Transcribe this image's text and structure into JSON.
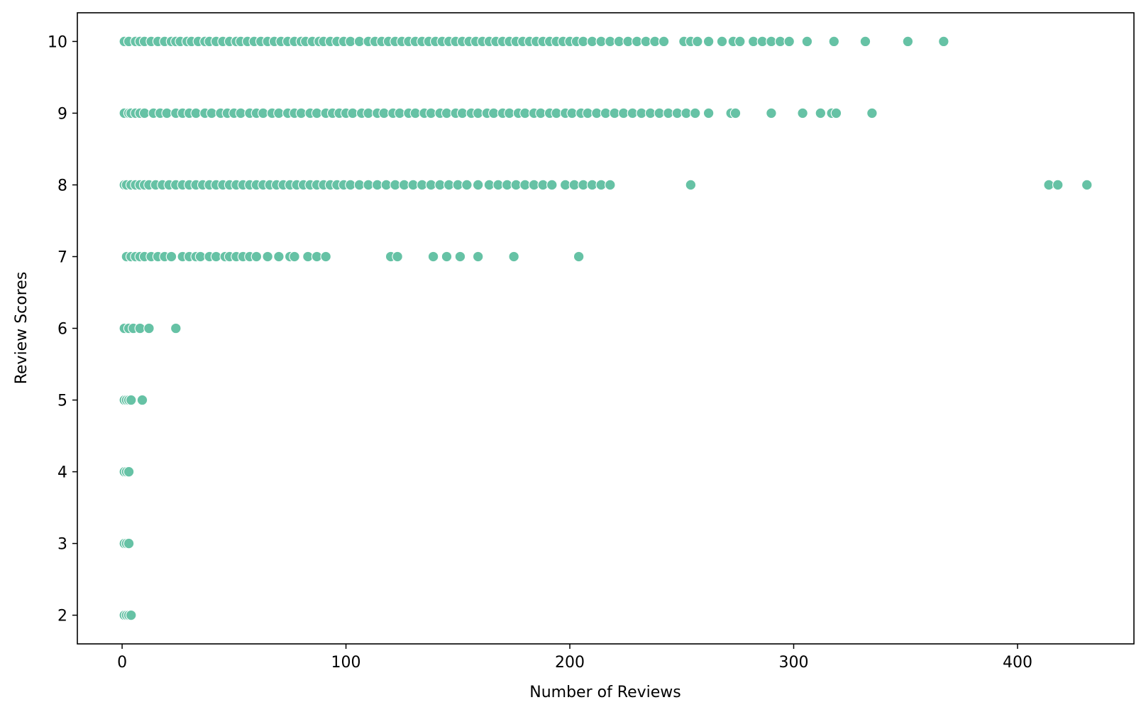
{
  "chart_data": {
    "type": "scatter",
    "title": "",
    "xlabel": "Number of Reviews",
    "ylabel": "Review Scores",
    "xlim": [
      -20,
      452
    ],
    "ylim": [
      1.6,
      10.4
    ],
    "xticks": [
      0,
      100,
      200,
      300,
      400
    ],
    "yticks": [
      2,
      3,
      4,
      5,
      6,
      7,
      8,
      9,
      10
    ],
    "grid": false,
    "legend": "none",
    "point_color": "#66c2a5",
    "point_edge_color": "#ffffff",
    "series": [
      {
        "x": [
          1,
          3,
          6,
          8,
          10,
          13,
          16,
          19,
          22,
          24,
          26,
          29,
          31,
          34,
          37,
          39,
          42,
          45,
          48,
          51,
          53,
          56,
          59,
          62,
          65,
          68,
          71,
          74,
          77,
          80,
          82,
          85,
          88,
          90,
          93,
          96,
          99,
          102,
          106,
          110,
          113,
          116,
          119,
          122,
          125,
          128,
          131,
          134,
          137,
          140,
          143,
          146,
          149,
          152,
          155,
          158,
          161,
          164,
          167,
          170,
          173,
          176,
          179,
          182,
          185,
          188,
          191,
          194,
          197,
          200,
          203,
          206,
          210,
          214,
          218,
          222,
          226,
          230,
          234,
          238,
          242,
          251,
          254,
          257,
          262,
          268,
          273,
          276,
          282,
          286,
          290,
          294,
          298,
          306,
          318,
          332,
          351,
          367
        ],
        "y": [
          10,
          10,
          10,
          10,
          10,
          10,
          10,
          10,
          10,
          10,
          10,
          10,
          10,
          10,
          10,
          10,
          10,
          10,
          10,
          10,
          10,
          10,
          10,
          10,
          10,
          10,
          10,
          10,
          10,
          10,
          10,
          10,
          10,
          10,
          10,
          10,
          10,
          10,
          10,
          10,
          10,
          10,
          10,
          10,
          10,
          10,
          10,
          10,
          10,
          10,
          10,
          10,
          10,
          10,
          10,
          10,
          10,
          10,
          10,
          10,
          10,
          10,
          10,
          10,
          10,
          10,
          10,
          10,
          10,
          10,
          10,
          10,
          10,
          10,
          10,
          10,
          10,
          10,
          10,
          10,
          10,
          10,
          10,
          10,
          10,
          10,
          10,
          10,
          10,
          10,
          10,
          10,
          10,
          10,
          10,
          10,
          10,
          10
        ]
      },
      {
        "x": [
          1,
          3,
          4,
          6,
          8,
          10,
          14,
          17,
          20,
          24,
          27,
          30,
          33,
          37,
          40,
          44,
          47,
          50,
          53,
          57,
          60,
          63,
          67,
          70,
          74,
          77,
          80,
          84,
          87,
          91,
          94,
          97,
          100,
          103,
          107,
          110,
          114,
          117,
          121,
          124,
          128,
          131,
          135,
          138,
          142,
          145,
          149,
          152,
          156,
          159,
          163,
          166,
          170,
          173,
          177,
          180,
          184,
          187,
          191,
          194,
          198,
          201,
          205,
          208,
          212,
          216,
          220,
          224,
          228,
          232,
          236,
          240,
          244,
          248,
          252,
          256,
          262,
          272,
          274,
          290,
          304,
          312,
          317,
          319,
          335
        ],
        "y": [
          9,
          9,
          9,
          9,
          9,
          9,
          9,
          9,
          9,
          9,
          9,
          9,
          9,
          9,
          9,
          9,
          9,
          9,
          9,
          9,
          9,
          9,
          9,
          9,
          9,
          9,
          9,
          9,
          9,
          9,
          9,
          9,
          9,
          9,
          9,
          9,
          9,
          9,
          9,
          9,
          9,
          9,
          9,
          9,
          9,
          9,
          9,
          9,
          9,
          9,
          9,
          9,
          9,
          9,
          9,
          9,
          9,
          9,
          9,
          9,
          9,
          9,
          9,
          9,
          9,
          9,
          9,
          9,
          9,
          9,
          9,
          9,
          9,
          9,
          9,
          9,
          9,
          9,
          9,
          9,
          9,
          9,
          9,
          9,
          9
        ]
      },
      {
        "x": [
          1,
          2,
          4,
          6,
          8,
          10,
          12,
          15,
          18,
          21,
          24,
          27,
          30,
          33,
          36,
          39,
          42,
          45,
          48,
          51,
          54,
          57,
          60,
          63,
          66,
          69,
          72,
          75,
          78,
          81,
          84,
          87,
          90,
          93,
          96,
          99,
          102,
          106,
          110,
          114,
          118,
          122,
          126,
          130,
          134,
          138,
          142,
          146,
          150,
          154,
          159,
          164,
          168,
          172,
          176,
          180,
          184,
          188,
          192,
          198,
          202,
          206,
          210,
          214,
          218,
          254,
          414,
          418,
          431
        ],
        "y": [
          8,
          8,
          8,
          8,
          8,
          8,
          8,
          8,
          8,
          8,
          8,
          8,
          8,
          8,
          8,
          8,
          8,
          8,
          8,
          8,
          8,
          8,
          8,
          8,
          8,
          8,
          8,
          8,
          8,
          8,
          8,
          8,
          8,
          8,
          8,
          8,
          8,
          8,
          8,
          8,
          8,
          8,
          8,
          8,
          8,
          8,
          8,
          8,
          8,
          8,
          8,
          8,
          8,
          8,
          8,
          8,
          8,
          8,
          8,
          8,
          8,
          8,
          8,
          8,
          8,
          8,
          8,
          8,
          8
        ]
      },
      {
        "x": [
          2,
          4,
          6,
          8,
          10,
          13,
          16,
          19,
          22,
          27,
          30,
          33,
          35,
          39,
          42,
          46,
          48,
          51,
          54,
          57,
          60,
          65,
          70,
          75,
          77,
          83,
          87,
          91,
          120,
          123,
          139,
          145,
          151,
          159,
          175,
          204
        ],
        "y": [
          7,
          7,
          7,
          7,
          7,
          7,
          7,
          7,
          7,
          7,
          7,
          7,
          7,
          7,
          7,
          7,
          7,
          7,
          7,
          7,
          7,
          7,
          7,
          7,
          7,
          7,
          7,
          7,
          7,
          7,
          7,
          7,
          7,
          7,
          7,
          7
        ]
      },
      {
        "x": [
          1,
          3,
          5,
          8,
          12,
          24
        ],
        "y": [
          6,
          6,
          6,
          6,
          6,
          6
        ]
      },
      {
        "x": [
          1,
          2,
          3,
          4,
          9
        ],
        "y": [
          5,
          5,
          5,
          5,
          5
        ]
      },
      {
        "x": [
          1,
          2,
          3
        ],
        "y": [
          4,
          4,
          4
        ]
      },
      {
        "x": [
          1,
          2,
          3
        ],
        "y": [
          3,
          3,
          3
        ]
      },
      {
        "x": [
          1,
          2,
          3,
          4
        ],
        "y": [
          2,
          2,
          2,
          2
        ]
      }
    ]
  }
}
